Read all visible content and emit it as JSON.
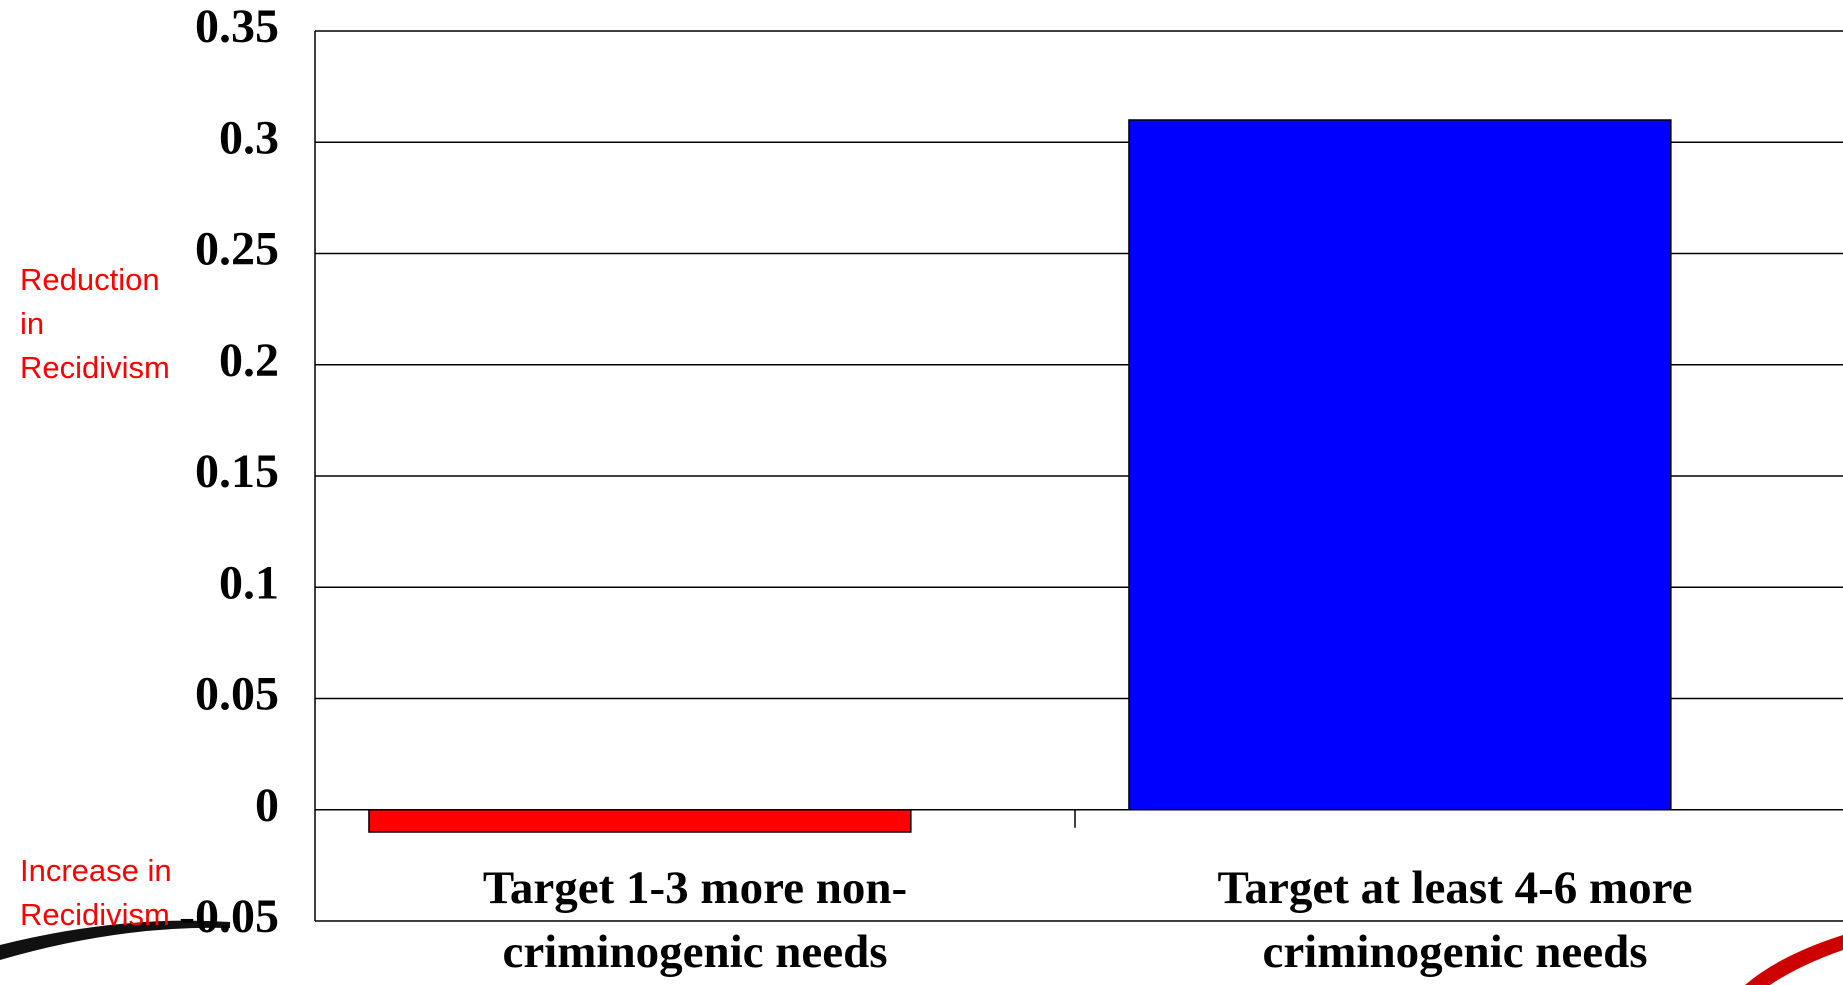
{
  "chart_data": {
    "type": "bar",
    "categories": [
      "Target 1-3 more non-criminogenic needs",
      "Target at least 4-6 more criminogenic needs"
    ],
    "series": [
      {
        "name": null,
        "values": [
          -0.01,
          0.31
        ],
        "colors": [
          "#ff0000",
          "#0000ff"
        ]
      }
    ],
    "ylim": [
      -0.05,
      0.35
    ],
    "yticks": [
      -0.05,
      0,
      0.05,
      0.1,
      0.15,
      0.2,
      0.25,
      0.3,
      0.35
    ],
    "grid": true,
    "annotations": [
      "Reduction in Recidivism",
      "Increase in Recidivism"
    ]
  }
}
